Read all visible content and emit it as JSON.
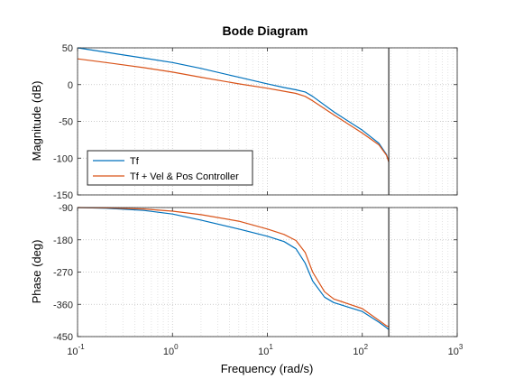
{
  "chart_data": {
    "type": "line",
    "title": "Bode Diagram",
    "xlabel": "Frequency  (rad/s)",
    "xscale": "log",
    "xlim": [
      0.1,
      1000
    ],
    "x_ticks": [
      0.1,
      1,
      10,
      100,
      1000
    ],
    "x_tick_labels": [
      {
        "base": "10",
        "exp": "-1"
      },
      {
        "base": "10",
        "exp": "0"
      },
      {
        "base": "10",
        "exp": "1"
      },
      {
        "base": "10",
        "exp": "2"
      },
      {
        "base": "10",
        "exp": "3"
      }
    ],
    "grid": "on (major and minor, dotted)",
    "vertical_line_x": 190,
    "legend": {
      "placement": "lower-left of magnitude panel",
      "entries": [
        "Tf",
        "Tf + Vel & Pos Controller"
      ]
    },
    "colors": {
      "Tf": "#0072BD",
      "Tf + Vel & Pos Controller": "#D95319",
      "axes": "#262626",
      "grid": "#d0d0d0"
    },
    "panels": [
      {
        "name": "magnitude",
        "ylabel": "Magnitude (dB)",
        "ylim": [
          -150,
          50
        ],
        "y_ticks": [
          50,
          0,
          -50,
          -100,
          -150
        ],
        "series": [
          {
            "name": "Tf",
            "points": [
              [
                0.1,
                50
              ],
              [
                0.2,
                44
              ],
              [
                0.5,
                36
              ],
              [
                1,
                30
              ],
              [
                2,
                22
              ],
              [
                5,
                10
              ],
              [
                10,
                1
              ],
              [
                15,
                -4
              ],
              [
                20,
                -7
              ],
              [
                25,
                -10
              ],
              [
                30,
                -16
              ],
              [
                50,
                -37
              ],
              [
                100,
                -62
              ],
              [
                150,
                -80
              ],
              [
                180,
                -95
              ],
              [
                190,
                -105
              ]
            ]
          },
          {
            "name": "Tf + Vel & Pos Controller",
            "points": [
              [
                0.1,
                35
              ],
              [
                0.2,
                30
              ],
              [
                0.5,
                23
              ],
              [
                1,
                17
              ],
              [
                2,
                10
              ],
              [
                5,
                1
              ],
              [
                10,
                -5
              ],
              [
                15,
                -9
              ],
              [
                20,
                -12
              ],
              [
                25,
                -16
              ],
              [
                30,
                -22
              ],
              [
                50,
                -41
              ],
              [
                100,
                -66
              ],
              [
                150,
                -82
              ],
              [
                180,
                -96
              ],
              [
                190,
                -105
              ]
            ]
          }
        ]
      },
      {
        "name": "phase",
        "ylabel": "Phase (deg)",
        "ylim": [
          -450,
          -90
        ],
        "y_ticks": [
          -90,
          -180,
          -270,
          -360,
          -450
        ],
        "series": [
          {
            "name": "Tf",
            "points": [
              [
                0.1,
                -90
              ],
              [
                0.2,
                -92
              ],
              [
                0.5,
                -98
              ],
              [
                1,
                -108
              ],
              [
                2,
                -125
              ],
              [
                5,
                -150
              ],
              [
                10,
                -170
              ],
              [
                15,
                -185
              ],
              [
                20,
                -205
              ],
              [
                25,
                -245
              ],
              [
                30,
                -295
              ],
              [
                40,
                -340
              ],
              [
                50,
                -355
              ],
              [
                100,
                -380
              ],
              [
                150,
                -410
              ],
              [
                180,
                -425
              ],
              [
                190,
                -430
              ]
            ]
          },
          {
            "name": "Tf + Vel & Pos Controller",
            "points": [
              [
                0.1,
                -90
              ],
              [
                0.2,
                -91
              ],
              [
                0.5,
                -94
              ],
              [
                1,
                -100
              ],
              [
                2,
                -110
              ],
              [
                5,
                -128
              ],
              [
                10,
                -150
              ],
              [
                15,
                -165
              ],
              [
                20,
                -182
              ],
              [
                25,
                -215
              ],
              [
                30,
                -270
              ],
              [
                40,
                -325
              ],
              [
                50,
                -345
              ],
              [
                100,
                -372
              ],
              [
                150,
                -405
              ],
              [
                180,
                -420
              ],
              [
                190,
                -422
              ]
            ]
          }
        ]
      }
    ]
  }
}
